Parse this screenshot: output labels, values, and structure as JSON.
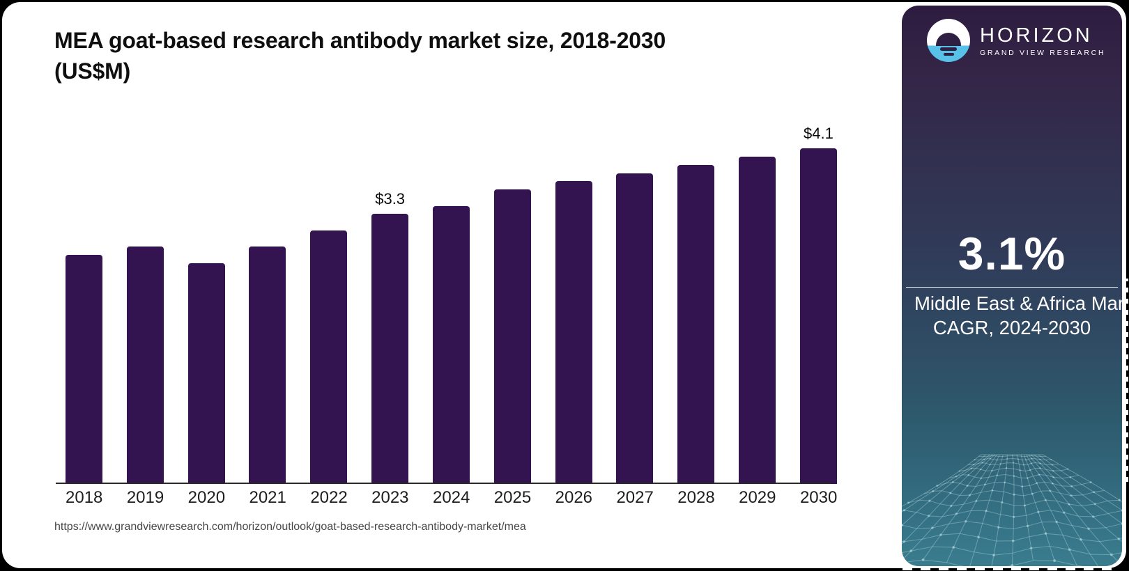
{
  "chart": {
    "title_line1": "MEA goat-based research antibody market size, 2018-2030",
    "title_line2": "(US$M)",
    "source_url": "https://www.grandviewresearch.com/horizon/outlook/goat-based-research-antibody-market/mea"
  },
  "chart_data": {
    "type": "bar",
    "title": "MEA goat-based research antibody market size, 2018-2030 (US$M)",
    "unit": "US$M",
    "categories": [
      "2018",
      "2019",
      "2020",
      "2021",
      "2022",
      "2023",
      "2024",
      "2025",
      "2026",
      "2027",
      "2028",
      "2029",
      "2030"
    ],
    "values": [
      2.8,
      2.9,
      2.7,
      2.9,
      3.1,
      3.3,
      3.4,
      3.6,
      3.7,
      3.8,
      3.9,
      4.0,
      4.1
    ],
    "bar_labels": [
      "",
      "",
      "",
      "",
      "",
      "$3.3",
      "",
      "",
      "",
      "",
      "",
      "",
      "$4.1"
    ],
    "xlabel": "",
    "ylabel": "",
    "ylim": [
      0,
      4.6
    ],
    "grid": false,
    "legend": false,
    "bar_color": "#331450",
    "axis_color": "#2a2a2a"
  },
  "panel": {
    "logo": {
      "icon": "horizon-sun-over-water-icon",
      "brand": "HORIZON",
      "subtitle": "GRAND VIEW RESEARCH",
      "accent_blue": "#57c1e8"
    },
    "cagr_value": "3.1%",
    "cagr_label_line1": "Middle East & Africa Market",
    "cagr_label_line2": "CAGR, 2024-2030",
    "colors": {
      "top_purple": "#2d1c3f",
      "mid_navy": "#303c59",
      "bottom_teal": "#3a7d8e",
      "mesh_line": "rgba(190,225,232,0.38)"
    }
  }
}
